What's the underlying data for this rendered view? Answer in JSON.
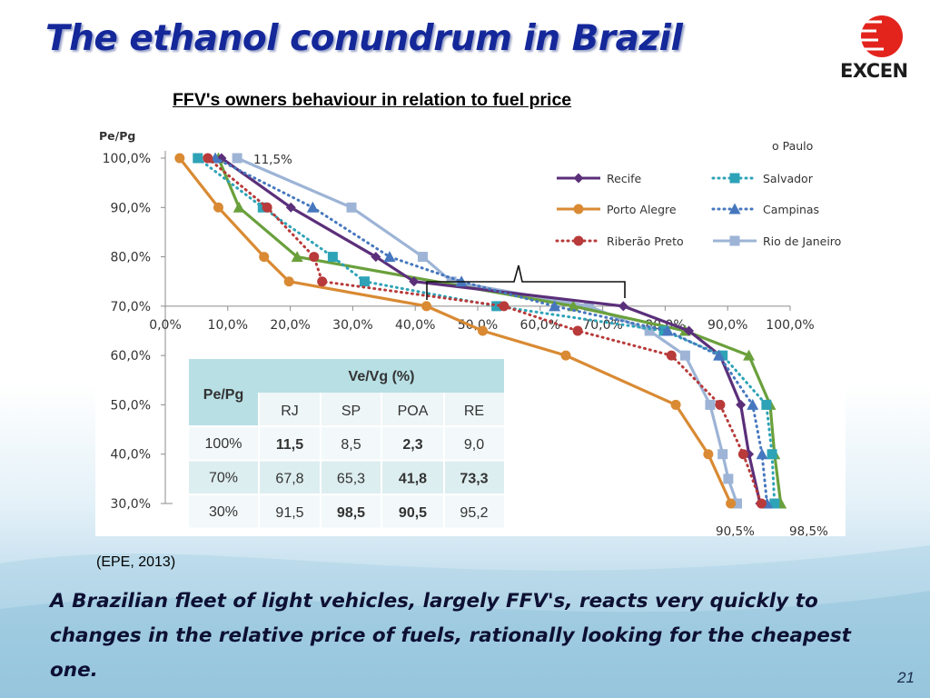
{
  "slide": {
    "title": "The ethanol conundrum in Brazil",
    "logo_text": "EXCEN",
    "source": "(EPE, 2013)",
    "bottom_text": "A Brazilian fleet of light vehicles, largely FFV's, reacts very quickly to changes in the relative price of fuels, rationally looking for the cheapest one.",
    "page_number": "21"
  },
  "colors": {
    "title": "#14289a",
    "recife": "#5b2f7a",
    "salvador": "#2ea3b7",
    "porto_alegre": "#d98a33",
    "campinas": "#4677be",
    "ribeirao_preto": "#b83a3a",
    "rio_de_janeiro": "#9db4d6",
    "sao_paulo": "#6aa03c",
    "table_header": "#b8dfe4",
    "table_row": "#ddeef0"
  },
  "chart_data": {
    "type": "line",
    "title": "FFV's owners behaviour in relation to fuel price",
    "ylabel": "Pe/Pg",
    "xlim": [
      0,
      100
    ],
    "ylim": [
      30,
      100
    ],
    "x_ticks": [
      "0,0%",
      "10,0%",
      "20,0%",
      "30,0%",
      "40,0%",
      "50,0%",
      "60,0%",
      "70,0%",
      "80,0%",
      "90,0%",
      "100,0%"
    ],
    "y_ticks": [
      "100,0%",
      "90,0%",
      "80,0%",
      "70,0%",
      "60,0%",
      "50,0%",
      "40,0%",
      "30,0%"
    ],
    "legend_partial_label": "o Paulo",
    "legend": [
      {
        "name": "Recife",
        "color_key": "recife",
        "style": "solid",
        "marker": "diamond"
      },
      {
        "name": "Salvador",
        "color_key": "salvador",
        "style": "dotted",
        "marker": "square"
      },
      {
        "name": "Porto Alegre",
        "color_key": "porto_alegre",
        "style": "solid",
        "marker": "circle"
      },
      {
        "name": "Campinas",
        "color_key": "campinas",
        "style": "dotted",
        "marker": "triangle"
      },
      {
        "name": "Riberão Preto",
        "color_key": "ribeirao_preto",
        "style": "dotted",
        "marker": "circle"
      },
      {
        "name": "Rio de Janeiro",
        "color_key": "rio_de_janeiro",
        "style": "solid",
        "marker": "square"
      }
    ],
    "series": [
      {
        "name": "Rio de Janeiro",
        "color_key": "rio_de_janeiro",
        "style": "solid",
        "marker": "square",
        "x": [
          11.5,
          29.8,
          41.2,
          45.8,
          67.8,
          77.5,
          83.2,
          87.2,
          89.2,
          90.1,
          91.5
        ],
        "y": [
          100,
          90,
          80,
          75,
          70,
          65,
          60,
          50,
          40,
          35,
          30
        ]
      },
      {
        "name": "Sao Paulo",
        "color_key": "sao_paulo",
        "style": "solid",
        "marker": "triangle",
        "x": [
          8.5,
          11.8,
          21.1,
          65.3,
          83.2,
          93.4,
          96.8,
          97.5,
          98.5
        ],
        "y": [
          100,
          90,
          80,
          70,
          65,
          60,
          50,
          40,
          30
        ]
      },
      {
        "name": "Porto Alegre",
        "color_key": "porto_alegre",
        "style": "solid",
        "marker": "circle",
        "x": [
          2.3,
          8.5,
          15.8,
          19.8,
          41.8,
          50.8,
          64.1,
          81.7,
          86.9,
          90.5
        ],
        "y": [
          100,
          90,
          80,
          75,
          70,
          65,
          60,
          50,
          40,
          30
        ]
      },
      {
        "name": "Recife",
        "color_key": "recife",
        "style": "solid",
        "marker": "diamond",
        "x": [
          9.0,
          20.1,
          33.7,
          39.8,
          73.3,
          83.8,
          88.8,
          92.1,
          93.4,
          95.2
        ],
        "y": [
          100,
          90,
          80,
          75,
          70,
          65,
          60,
          50,
          40,
          30
        ]
      },
      {
        "name": "Salvador",
        "color_key": "salvador",
        "style": "dotted",
        "marker": "square",
        "x": [
          5.2,
          15.6,
          26.8,
          31.9,
          53.0,
          79.8,
          89.2,
          96.2,
          97.1,
          97.5
        ],
        "y": [
          100,
          90,
          80,
          75,
          70,
          65,
          60,
          50,
          40,
          30
        ]
      },
      {
        "name": "Campinas",
        "color_key": "campinas",
        "style": "dotted",
        "marker": "triangle",
        "x": [
          8.0,
          23.6,
          35.9,
          47.4,
          62.3,
          80.4,
          88.6,
          94.0,
          95.5,
          96.3
        ],
        "y": [
          100,
          90,
          80,
          75,
          70,
          65,
          60,
          50,
          40,
          30
        ]
      },
      {
        "name": "Riberão Preto",
        "color_key": "ribeirao_preto",
        "style": "dotted",
        "marker": "circle",
        "x": [
          6.8,
          16.3,
          23.8,
          25.1,
          54.2,
          66.0,
          81.0,
          88.8,
          92.5,
          95.4
        ],
        "y": [
          100,
          90,
          80,
          75,
          70,
          65,
          60,
          50,
          40,
          30
        ]
      }
    ],
    "annotations": [
      "11,5%",
      "90,5%",
      "98,5%"
    ],
    "table": {
      "row_header": "Pe/Pg",
      "group_header": "Ve/Vg (%)",
      "columns": [
        "RJ",
        "SP",
        "POA",
        "RE"
      ],
      "rows": [
        {
          "label": "100%",
          "values": [
            "11,5",
            "8,5",
            "2,3",
            "9,0"
          ],
          "bold": [
            true,
            false,
            true,
            false
          ]
        },
        {
          "label": "70%",
          "values": [
            "67,8",
            "65,3",
            "41,8",
            "73,3"
          ],
          "bold": [
            false,
            false,
            true,
            true
          ]
        },
        {
          "label": "30%",
          "values": [
            "91,5",
            "98,5",
            "90,5",
            "95,2"
          ],
          "bold": [
            false,
            true,
            true,
            false
          ]
        }
      ]
    }
  }
}
